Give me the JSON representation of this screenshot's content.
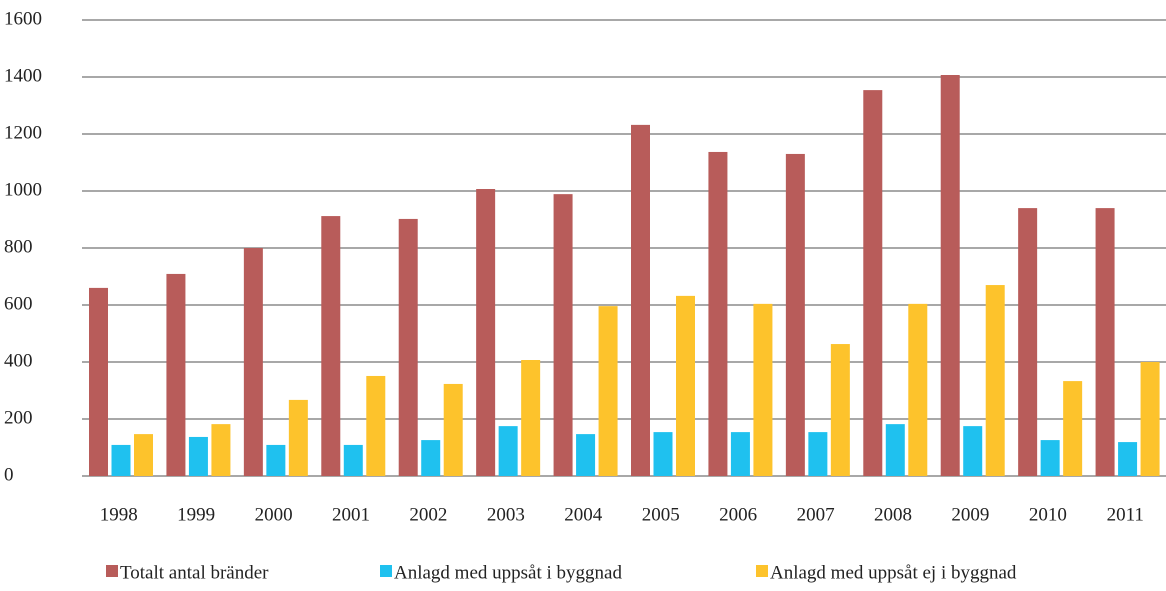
{
  "chart_data": {
    "type": "bar",
    "categories": [
      "1998",
      "1999",
      "2000",
      "2001",
      "2002",
      "2003",
      "2004",
      "2005",
      "2006",
      "2007",
      "2008",
      "2009",
      "2010",
      "2011"
    ],
    "series": [
      {
        "name": "Totalt antal bränder",
        "color": "#b85c5a",
        "values": [
          660,
          709,
          800,
          912,
          902,
          1007,
          989,
          1232,
          1137,
          1130,
          1354,
          1407,
          940,
          940
        ]
      },
      {
        "name": "Anlagd med uppsåt i byggnad",
        "color": "#1fc1ef",
        "values": [
          109,
          137,
          109,
          109,
          126,
          175,
          147,
          154,
          154,
          154,
          182,
          175,
          126,
          119
        ]
      },
      {
        "name": "Anlagd med uppsåt ej i byggnad",
        "color": "#fdc32c",
        "values": [
          147,
          182,
          267,
          351,
          323,
          407,
          596,
          632,
          604,
          463,
          604,
          670,
          333,
          400
        ]
      }
    ],
    "ylim": [
      0,
      1600
    ],
    "yticks": [
      0,
      200,
      400,
      600,
      800,
      1000,
      1200,
      1400,
      1600
    ],
    "grid": true,
    "legend": "bottom"
  }
}
